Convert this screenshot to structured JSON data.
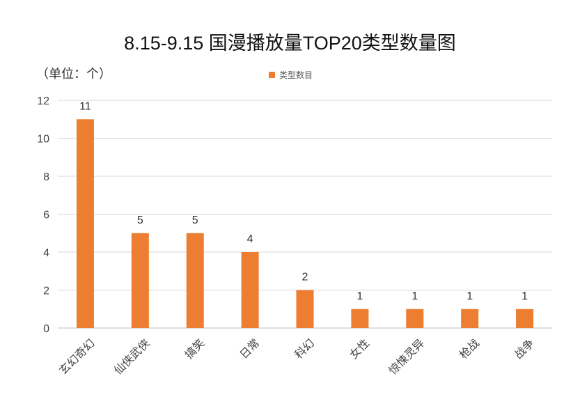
{
  "chart_data": {
    "type": "bar",
    "title": "8.15-9.15 国漫播放量TOP20类型数量图",
    "unit_label": "（单位：个）",
    "categories": [
      "玄幻奇幻",
      "仙侠武侠",
      "搞笑",
      "日常",
      "科幻",
      "女性",
      "惊悚灵异",
      "枪战",
      "战争"
    ],
    "series": [
      {
        "name": "类型数目",
        "values": [
          11,
          5,
          5,
          4,
          2,
          1,
          1,
          1,
          1
        ],
        "color": "#ED7D31"
      }
    ],
    "ylim": [
      0,
      12
    ],
    "yticks": [
      "0",
      "2",
      "4",
      "6",
      "8",
      "10",
      "12"
    ],
    "grid": true,
    "legend_position": "top"
  }
}
